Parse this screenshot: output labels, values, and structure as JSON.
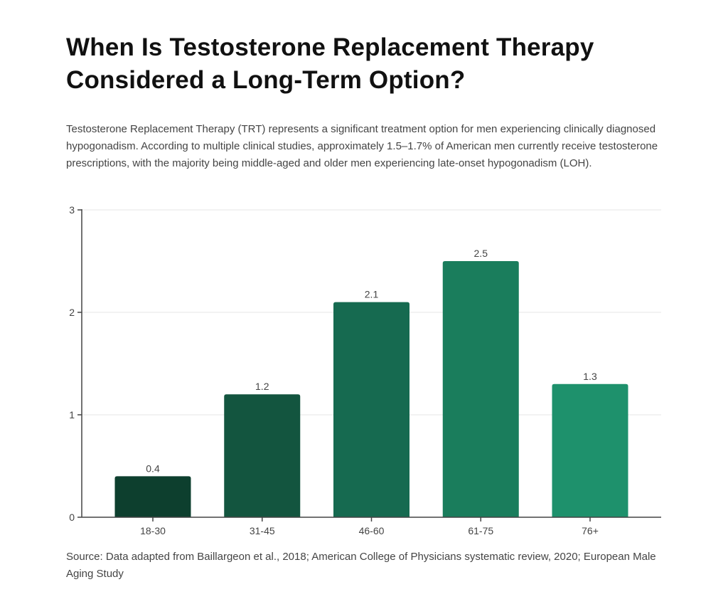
{
  "title": "When Is Testosterone Replacement Therapy Considered a Long-Term Option?",
  "description": "Testosterone Replacement Therapy (TRT) represents a significant treatment option for men experiencing clinically diagnosed hypogonadism. According to multiple clinical studies, approximately 1.5–1.7% of American men currently receive testosterone prescriptions, with the majority being middle-aged and older men experiencing late-onset hypogonadism (LOH).",
  "source": "Source: Data adapted from Baillargeon et al., 2018; American College of Physicians systematic review, 2020; European Male Aging Study",
  "chart_data": {
    "type": "bar",
    "categories": [
      "18-30",
      "31-45",
      "46-60",
      "61-75",
      "76+"
    ],
    "values": [
      0.4,
      1.2,
      2.1,
      2.5,
      1.3
    ],
    "data_labels": [
      "0.4",
      "1.2",
      "2.1",
      "2.5",
      "1.3"
    ],
    "colors": [
      "#0d3f2e",
      "#13553f",
      "#166a50",
      "#1a7d5c",
      "#1e916c"
    ],
    "yticks": [
      "0",
      "1",
      "2",
      "3"
    ],
    "ylim": [
      0,
      3
    ],
    "grid": true,
    "xlabel": "",
    "ylabel": ""
  }
}
